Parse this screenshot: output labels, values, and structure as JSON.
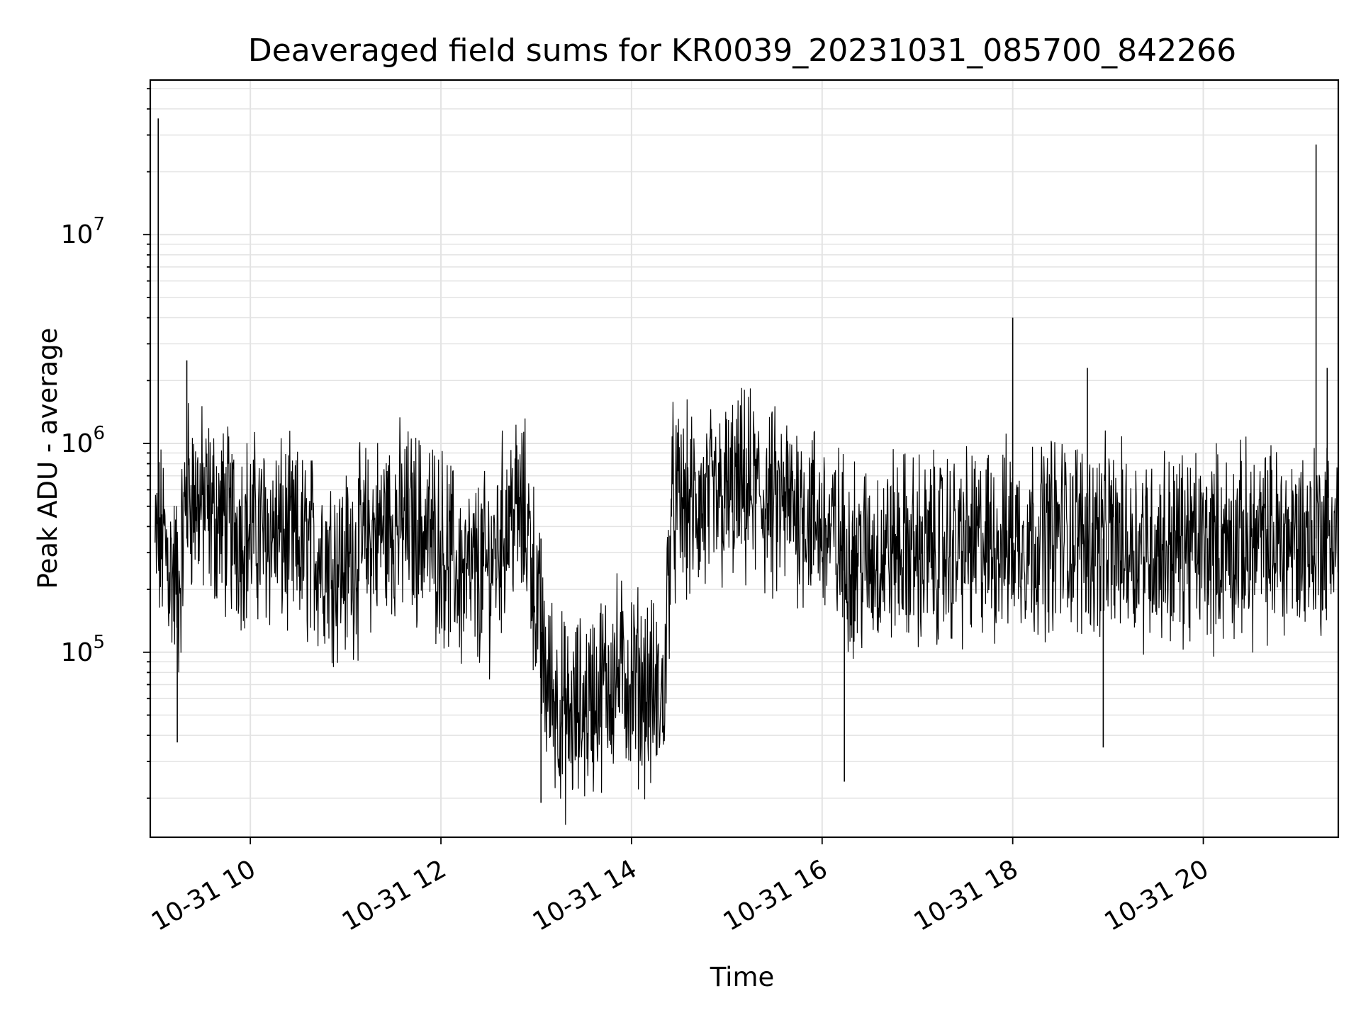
{
  "chart_data": {
    "type": "line",
    "title": "Deaveraged field sums for KR0039_20231031_085700_842266",
    "xlabel": "Time",
    "ylabel": "Peak ADU - average",
    "x_range": [
      "2023-10-31T08:57:00",
      "2023-10-31T21:25:00"
    ],
    "y_scale": "log",
    "ylim": [
      13000,
      55000000
    ],
    "grid": true,
    "grid_minor_y": true,
    "line_color": "#000000",
    "grid_color": "#e3e3e3",
    "x_ticks": [
      {
        "t": "2023-10-31T10:00:00",
        "label": "10-31 10"
      },
      {
        "t": "2023-10-31T12:00:00",
        "label": "10-31 12"
      },
      {
        "t": "2023-10-31T14:00:00",
        "label": "10-31 14"
      },
      {
        "t": "2023-10-31T16:00:00",
        "label": "10-31 16"
      },
      {
        "t": "2023-10-31T18:00:00",
        "label": "10-31 18"
      },
      {
        "t": "2023-10-31T20:00:00",
        "label": "10-31 20"
      }
    ],
    "y_ticks": [
      {
        "value": 100000,
        "base": "10",
        "exp": "5"
      },
      {
        "value": 1000000,
        "base": "10",
        "exp": "6"
      },
      {
        "value": 10000000,
        "base": "10",
        "exp": "7"
      }
    ],
    "series": [
      {
        "x": [
          "2023-10-31T09:00",
          "2023-10-31T09:05",
          "2023-10-31T09:10",
          "2023-10-31T09:15",
          "2023-10-31T09:20",
          "2023-10-31T09:30",
          "2023-10-31T09:45",
          "2023-10-31T10:00",
          "2023-10-31T10:15",
          "2023-10-31T10:30",
          "2023-10-31T10:45",
          "2023-10-31T11:00",
          "2023-10-31T11:15",
          "2023-10-31T11:30",
          "2023-10-31T11:45",
          "2023-10-31T12:00",
          "2023-10-31T12:15",
          "2023-10-31T12:30",
          "2023-10-31T12:45",
          "2023-10-31T12:55",
          "2023-10-31T13:05",
          "2023-10-31T13:20",
          "2023-10-31T13:35",
          "2023-10-31T13:50",
          "2023-10-31T14:05",
          "2023-10-31T14:20",
          "2023-10-31T14:25",
          "2023-10-31T14:45",
          "2023-10-31T15:00",
          "2023-10-31T15:15",
          "2023-10-31T15:30",
          "2023-10-31T15:45",
          "2023-10-31T16:00",
          "2023-10-31T16:15",
          "2023-10-31T16:30",
          "2023-10-31T16:45",
          "2023-10-31T17:00",
          "2023-10-31T17:15",
          "2023-10-31T17:30",
          "2023-10-31T17:45",
          "2023-10-31T18:00",
          "2023-10-31T18:15",
          "2023-10-31T18:30",
          "2023-10-31T18:45",
          "2023-10-31T19:00",
          "2023-10-31T19:15",
          "2023-10-31T19:30",
          "2023-10-31T19:45",
          "2023-10-31T20:00",
          "2023-10-31T20:15",
          "2023-10-31T20:30",
          "2023-10-31T20:45",
          "2023-10-31T21:00",
          "2023-10-31T21:15",
          "2023-10-31T21:25"
        ],
        "y": [
          300000,
          350000,
          250000,
          200000,
          600000,
          500000,
          420000,
          380000,
          380000,
          320000,
          300000,
          260000,
          350000,
          420000,
          400000,
          330000,
          220000,
          250000,
          500000,
          400000,
          80000,
          45000,
          60000,
          80000,
          70000,
          55000,
          500000,
          480000,
          550000,
          600000,
          480000,
          520000,
          400000,
          300000,
          280000,
          320000,
          300000,
          310000,
          320000,
          330000,
          350000,
          360000,
          380000,
          360000,
          340000,
          330000,
          320000,
          330000,
          320000,
          330000,
          330000,
          340000,
          350000,
          360000,
          400000
        ]
      }
    ],
    "spikes": [
      {
        "t": "2023-10-31T09:02",
        "value": 36000000
      },
      {
        "t": "2023-10-31T09:20",
        "value": 2500000
      },
      {
        "t": "2023-10-31T18:00",
        "value": 4000000
      },
      {
        "t": "2023-10-31T18:47",
        "value": 2300000
      },
      {
        "t": "2023-10-31T21:11",
        "value": 27000000
      },
      {
        "t": "2023-10-31T21:18",
        "value": 2300000
      },
      {
        "t": "2023-10-31T16:14",
        "value": 24000
      },
      {
        "t": "2023-10-31T13:03",
        "value": 19000
      },
      {
        "t": "2023-10-31T18:57",
        "value": 35000
      },
      {
        "t": "2023-10-31T09:14",
        "value": 37000
      }
    ]
  }
}
